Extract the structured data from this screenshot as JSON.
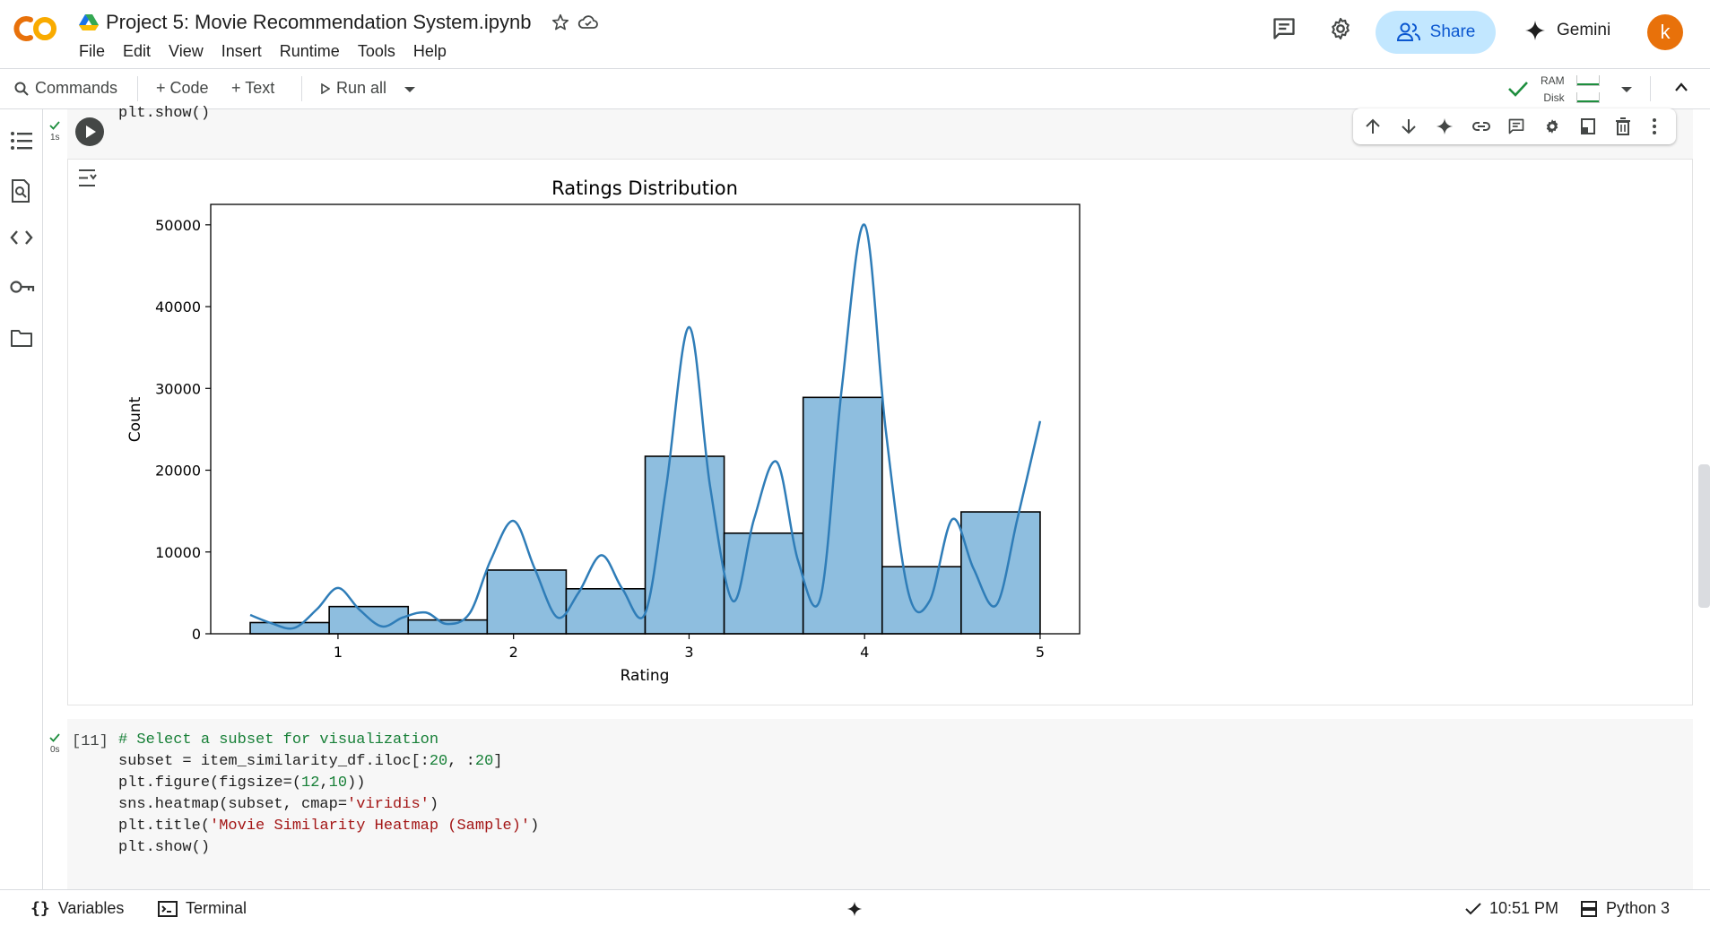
{
  "header": {
    "doc_title": "Project 5: Movie Recommendation System.ipynb",
    "logo_text": "CO",
    "menu": [
      "File",
      "Edit",
      "View",
      "Insert",
      "Runtime",
      "Tools",
      "Help"
    ],
    "share_label": "Share",
    "gemini_label": "Gemini",
    "avatar_letter": "k",
    "icons": [
      "comment-icon",
      "settings-gear-icon",
      "people-icon",
      "gemini-spark-icon"
    ]
  },
  "toolbar": {
    "commands_label": "Commands",
    "add_code_label": "+ Code",
    "add_text_label": "+ Text",
    "run_all_label": "Run all",
    "ram_label": "RAM",
    "disk_label": "Disk"
  },
  "rail": {
    "icons": [
      "table-of-contents-icon",
      "find-icon",
      "code-snippets-icon",
      "secrets-key-icon",
      "files-folder-icon"
    ]
  },
  "cell1": {
    "code_tail": "plt.show()",
    "exec_time": "1s",
    "toolbar_icons": [
      "move-up-icon",
      "move-down-icon",
      "gemini-icon",
      "link-icon",
      "comment-icon",
      "settings-icon",
      "mirror-cell-icon",
      "delete-icon",
      "more-icon"
    ]
  },
  "chart_data": {
    "type": "bar",
    "title": "Ratings Distribution",
    "xlabel": "Rating",
    "ylabel": "Count",
    "xlim": [
      0.275,
      5.225
    ],
    "ylim": [
      0,
      52500
    ],
    "x_ticks": [
      1,
      2,
      3,
      4,
      5
    ],
    "y_ticks": [
      0,
      10000,
      20000,
      30000,
      40000,
      50000
    ],
    "bin_edges": [
      0.5,
      0.95,
      1.4,
      1.85,
      2.3,
      2.75,
      3.2,
      3.65,
      4.1,
      4.55,
      5.0
    ],
    "values": [
      1370,
      3326,
      1687,
      7787,
      5500,
      21700,
      12300,
      28900,
      8200,
      14900
    ],
    "kde": {
      "x": [
        0.5,
        0.62,
        0.75,
        0.88,
        1.0,
        1.12,
        1.25,
        1.37,
        1.5,
        1.62,
        1.75,
        1.87,
        2.0,
        2.12,
        2.25,
        2.37,
        2.5,
        2.62,
        2.75,
        2.87,
        3.0,
        3.12,
        3.25,
        3.37,
        3.5,
        3.62,
        3.75,
        3.87,
        4.0,
        4.12,
        4.25,
        4.37,
        4.5,
        4.62,
        4.75,
        4.87,
        5.0
      ],
      "y": [
        2300,
        1300,
        700,
        3000,
        5600,
        3000,
        900,
        2000,
        2600,
        1200,
        2500,
        9000,
        13800,
        8000,
        2000,
        5000,
        9600,
        5500,
        2500,
        18000,
        37500,
        18000,
        4000,
        14000,
        21000,
        9000,
        4500,
        30000,
        50000,
        25000,
        5000,
        4000,
        14000,
        8000,
        3500,
        14000,
        26000
      ]
    },
    "colors": {
      "bar_fill": "#8ebedf",
      "bar_edge": "#000000",
      "kde_line": "#2f7db8"
    }
  },
  "cell2": {
    "exec_count": "[11]",
    "exec_time": "0s",
    "code": {
      "line1": "# Select a subset for visualization",
      "line2a": "subset = item_similarity_df.iloc[:",
      "n20a": "20",
      "line2b": ", :",
      "n20b": "20",
      "line2c": "]",
      "line3a": "plt.figure(figsize=(",
      "n12": "12",
      "comma": ",",
      "n10": "10",
      "line3c": "))",
      "line4a": "sns.heatmap(subset, cmap=",
      "str_viridis": "'viridis'",
      "line4c": ")",
      "line5a": "plt.title(",
      "str_title": "'Movie Similarity Heatmap (Sample)'",
      "line5c": ")",
      "line6": "plt.show()"
    }
  },
  "statusbar": {
    "variables_label": "Variables",
    "terminal_label": "Terminal",
    "time": "10:51 PM",
    "runtime_label": "Python 3"
  },
  "colors": {
    "accent": "#0b57d0",
    "share_bg": "#c2e7ff",
    "avatar_bg": "#e8710a",
    "logo_orange": "#f9ab00",
    "check_green": "#1e8e3e"
  }
}
